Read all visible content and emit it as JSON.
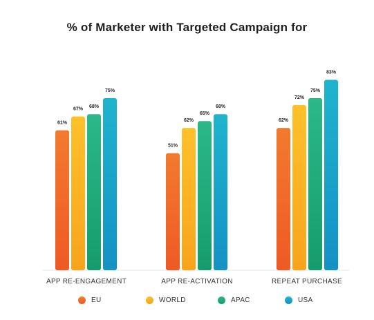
{
  "title": "% of Marketer with Targeted Campaign for",
  "chart_data": {
    "type": "bar",
    "title": "% of Marketer with Targeted Campaign for",
    "categories": [
      "APP RE-ENGAGEMENT",
      "APP RE-ACTIVATION",
      "REPEAT PURCHASE"
    ],
    "series": [
      {
        "name": "EU",
        "values": [
          61,
          51,
          62
        ],
        "labels": [
          "61%",
          "51%",
          "62%"
        ],
        "color_top": "#f27a2e",
        "color_bottom": "#ee5a24"
      },
      {
        "name": "WORLD",
        "values": [
          67,
          62,
          72
        ],
        "labels": [
          "67%",
          "62%",
          "72%"
        ],
        "color_top": "#fdc12a",
        "color_bottom": "#f8a41c"
      },
      {
        "name": "APAC",
        "values": [
          68,
          65,
          75
        ],
        "labels": [
          "68%",
          "65%",
          "75%"
        ],
        "color_top": "#2cb889",
        "color_bottom": "#169c6c"
      },
      {
        "name": "USA",
        "values": [
          75,
          68,
          83
        ],
        "labels": [
          "75%",
          "68%",
          "83%"
        ],
        "color_top": "#1fb4cd",
        "color_bottom": "#1491c6"
      }
    ],
    "ylim": [
      0,
      100
    ],
    "grid": false,
    "legend_position": "bottom"
  }
}
